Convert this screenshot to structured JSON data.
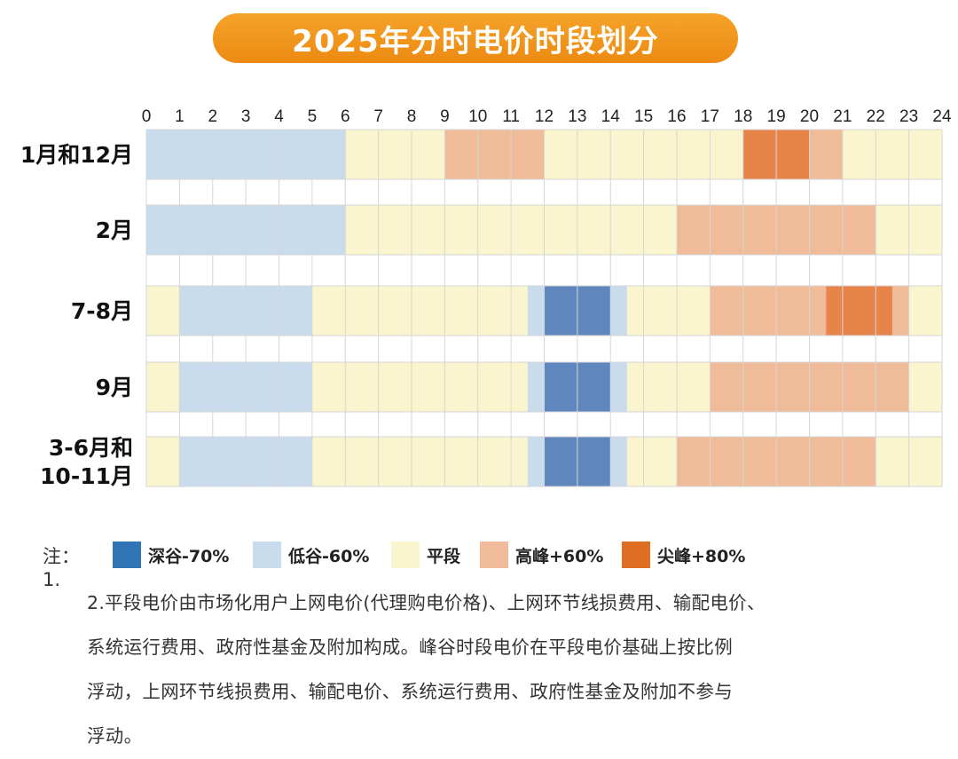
{
  "page": {
    "title": "2025年分时电价时段划分"
  },
  "colors": {
    "深谷": "#5f86bd",
    "低谷": "#c8dcee",
    "平段": "#fbf5cf",
    "高峰": "#efbb98",
    "尖峰": "#e7844a",
    "gap": "#ffffff",
    "grid": "#d6d6d6"
  },
  "chart_data": {
    "type": "heatmap",
    "title": "2025年分时电价时段划分",
    "x_ticks": [
      "0",
      "1",
      "2",
      "3",
      "4",
      "5",
      "6",
      "7",
      "8",
      "9",
      "10",
      "11",
      "12",
      "13",
      "14",
      "15",
      "16",
      "17",
      "18",
      "19",
      "20",
      "21",
      "22",
      "23",
      "24"
    ],
    "x_range": [
      0,
      24
    ],
    "rows": [
      {
        "label_lines": [
          "1月和12月"
        ],
        "segments": [
          {
            "start": 0,
            "end": 6,
            "type": "低谷"
          },
          {
            "start": 6,
            "end": 9,
            "type": "平段"
          },
          {
            "start": 9,
            "end": 12,
            "type": "高峰"
          },
          {
            "start": 12,
            "end": 18,
            "type": "平段"
          },
          {
            "start": 18,
            "end": 20,
            "type": "尖峰"
          },
          {
            "start": 20,
            "end": 21,
            "type": "高峰"
          },
          {
            "start": 21,
            "end": 24,
            "type": "平段"
          }
        ]
      },
      {
        "label_lines": [
          "2月"
        ],
        "segments": [
          {
            "start": 0,
            "end": 6,
            "type": "低谷"
          },
          {
            "start": 6,
            "end": 16,
            "type": "平段"
          },
          {
            "start": 16,
            "end": 22,
            "type": "高峰"
          },
          {
            "start": 22,
            "end": 24,
            "type": "平段"
          }
        ]
      },
      {
        "label_lines": [
          "7-8月"
        ],
        "segments": [
          {
            "start": 0,
            "end": 1,
            "type": "平段"
          },
          {
            "start": 1,
            "end": 5,
            "type": "低谷"
          },
          {
            "start": 5,
            "end": 11.5,
            "type": "平段"
          },
          {
            "start": 11.5,
            "end": 12,
            "type": "低谷"
          },
          {
            "start": 12,
            "end": 14,
            "type": "深谷"
          },
          {
            "start": 14,
            "end": 14.5,
            "type": "低谷"
          },
          {
            "start": 14.5,
            "end": 17,
            "type": "平段"
          },
          {
            "start": 17,
            "end": 20.5,
            "type": "高峰"
          },
          {
            "start": 20.5,
            "end": 22.5,
            "type": "尖峰"
          },
          {
            "start": 22.5,
            "end": 23,
            "type": "高峰"
          },
          {
            "start": 23,
            "end": 24,
            "type": "平段"
          }
        ]
      },
      {
        "label_lines": [
          "9月"
        ],
        "segments": [
          {
            "start": 0,
            "end": 1,
            "type": "平段"
          },
          {
            "start": 1,
            "end": 5,
            "type": "低谷"
          },
          {
            "start": 5,
            "end": 11.5,
            "type": "平段"
          },
          {
            "start": 11.5,
            "end": 12,
            "type": "低谷"
          },
          {
            "start": 12,
            "end": 14,
            "type": "深谷"
          },
          {
            "start": 14,
            "end": 14.5,
            "type": "低谷"
          },
          {
            "start": 14.5,
            "end": 17,
            "type": "平段"
          },
          {
            "start": 17,
            "end": 23,
            "type": "高峰"
          },
          {
            "start": 23,
            "end": 24,
            "type": "平段"
          }
        ]
      },
      {
        "label_lines": [
          "3-6月和",
          "10-11月"
        ],
        "segments": [
          {
            "start": 0,
            "end": 1,
            "type": "平段"
          },
          {
            "start": 1,
            "end": 5,
            "type": "低谷"
          },
          {
            "start": 5,
            "end": 11.5,
            "type": "平段"
          },
          {
            "start": 11.5,
            "end": 12,
            "type": "低谷"
          },
          {
            "start": 12,
            "end": 14,
            "type": "深谷"
          },
          {
            "start": 14,
            "end": 14.5,
            "type": "低谷"
          },
          {
            "start": 14.5,
            "end": 16,
            "type": "平段"
          },
          {
            "start": 16,
            "end": 22,
            "type": "高峰"
          },
          {
            "start": 22,
            "end": 24,
            "type": "平段"
          }
        ]
      }
    ],
    "legend": [
      {
        "type": "深谷",
        "label": "深谷-70%"
      },
      {
        "type": "低谷",
        "label": "低谷-60%"
      },
      {
        "type": "平段",
        "label": "平段"
      },
      {
        "type": "高峰",
        "label": "高峰+60%"
      },
      {
        "type": "尖峰",
        "label": "尖峰+80%"
      }
    ],
    "legend_placement": "bottom",
    "grid": true
  },
  "notes": {
    "prefix": "注：1.",
    "lines": [
      "2.平段电价由市场化用户上网电价(代理购电价格)、上网环节线损费用、输配电价、",
      "系统运行费用、政府性基金及附加构成。峰谷时段电价在平段电价基础上按比例",
      "浮动，上网环节线损费用、输配电价、系统运行费用、政府性基金及附加不参与",
      "浮动。"
    ]
  }
}
